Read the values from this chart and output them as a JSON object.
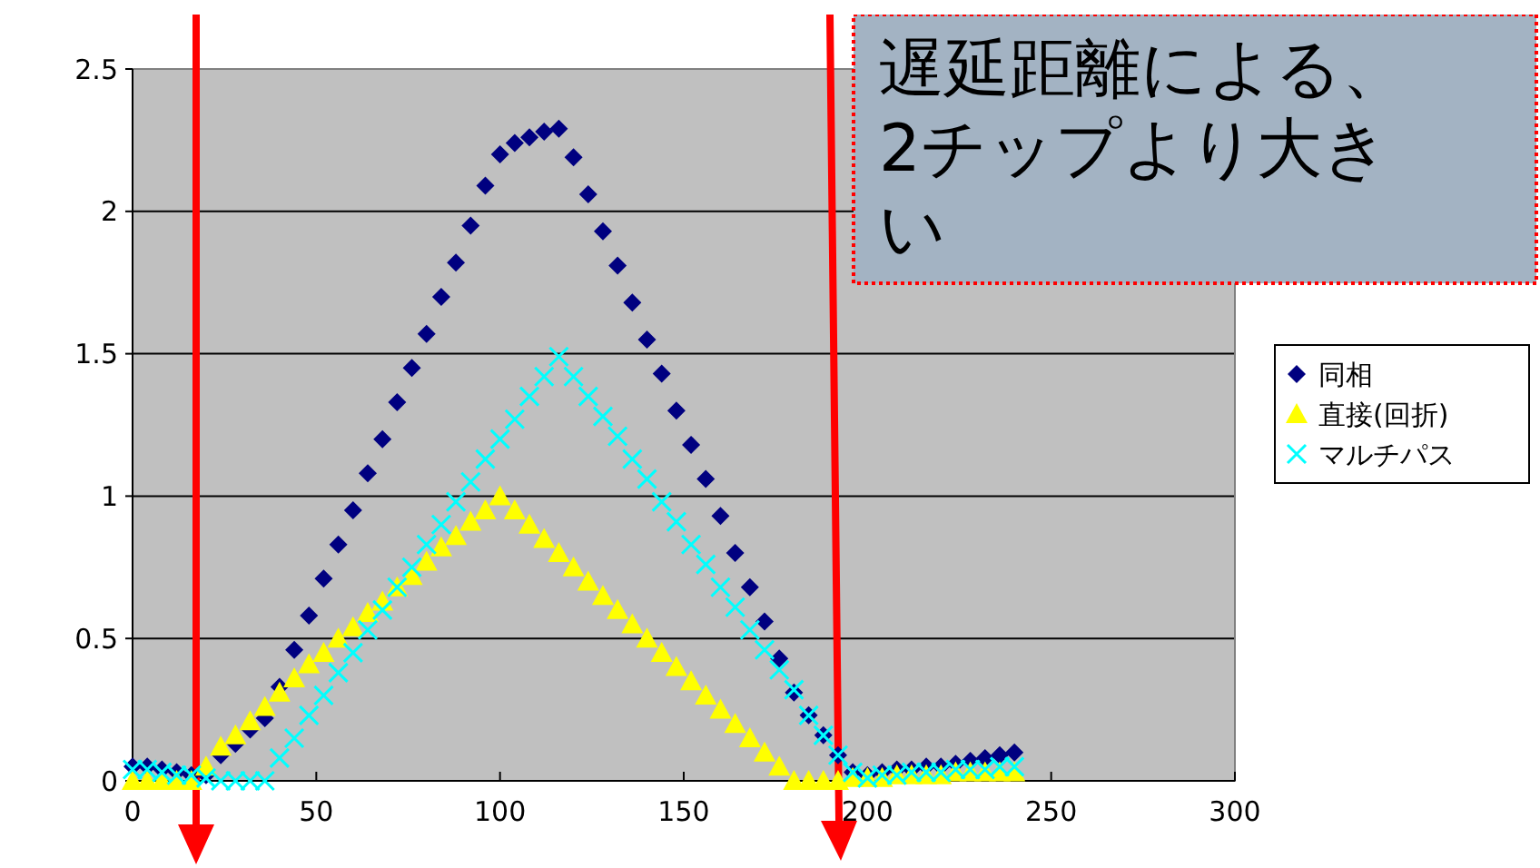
{
  "chart_data": {
    "type": "scatter",
    "x": [
      0,
      4,
      8,
      12,
      16,
      20,
      24,
      28,
      32,
      36,
      40,
      44,
      48,
      52,
      56,
      60,
      64,
      68,
      72,
      76,
      80,
      84,
      88,
      92,
      96,
      100,
      104,
      108,
      112,
      116,
      120,
      124,
      128,
      132,
      136,
      140,
      144,
      148,
      152,
      156,
      160,
      164,
      168,
      172,
      176,
      180,
      184,
      188,
      192,
      196,
      200,
      204,
      208,
      212,
      216,
      220,
      224,
      228,
      232,
      236,
      240
    ],
    "series": [
      {
        "name": "同相",
        "color": "#000080",
        "marker": "diamond",
        "values": [
          0.05,
          0.05,
          0.04,
          0.03,
          0.02,
          0.02,
          0.09,
          0.13,
          0.18,
          0.22,
          0.33,
          0.46,
          0.58,
          0.71,
          0.83,
          0.95,
          1.08,
          1.2,
          1.33,
          1.45,
          1.57,
          1.7,
          1.82,
          1.95,
          2.09,
          2.2,
          2.24,
          2.26,
          2.28,
          2.29,
          2.19,
          2.06,
          1.93,
          1.81,
          1.68,
          1.55,
          1.43,
          1.3,
          1.18,
          1.06,
          0.93,
          0.8,
          0.68,
          0.56,
          0.43,
          0.31,
          0.23,
          0.16,
          0.09,
          0.03,
          0.02,
          0.03,
          0.04,
          0.04,
          0.05,
          0.05,
          0.06,
          0.07,
          0.08,
          0.09,
          0.1
        ]
      },
      {
        "name": "直接(回折)",
        "color": "#ffff00",
        "marker": "triangle",
        "values": [
          0,
          0,
          0,
          0,
          0,
          0.05,
          0.12,
          0.16,
          0.21,
          0.26,
          0.31,
          0.36,
          0.41,
          0.45,
          0.5,
          0.54,
          0.59,
          0.63,
          0.68,
          0.72,
          0.77,
          0.82,
          0.86,
          0.91,
          0.95,
          1,
          0.95,
          0.9,
          0.85,
          0.8,
          0.75,
          0.7,
          0.65,
          0.6,
          0.55,
          0.5,
          0.45,
          0.4,
          0.35,
          0.3,
          0.25,
          0.2,
          0.15,
          0.1,
          0.05,
          0,
          0,
          0,
          0,
          0.01,
          0.01,
          0.01,
          0.02,
          0.02,
          0.02,
          0.02,
          0.03,
          0.03,
          0.03,
          0.03,
          0.03
        ]
      },
      {
        "name": "マルチパス",
        "color": "#00ffff",
        "marker": "cross",
        "values": [
          0.04,
          0.04,
          0.03,
          0.02,
          0.02,
          0.01,
          0,
          0,
          0,
          0,
          0.08,
          0.15,
          0.23,
          0.3,
          0.38,
          0.45,
          0.53,
          0.6,
          0.68,
          0.75,
          0.83,
          0.9,
          0.98,
          1.05,
          1.13,
          1.2,
          1.27,
          1.35,
          1.42,
          1.49,
          1.42,
          1.35,
          1.28,
          1.21,
          1.13,
          1.06,
          0.98,
          0.91,
          0.83,
          0.76,
          0.68,
          0.61,
          0.53,
          0.46,
          0.39,
          0.32,
          0.23,
          0.16,
          0.09,
          0.03,
          0.01,
          0.02,
          0.02,
          0.03,
          0.03,
          0.03,
          0.04,
          0.04,
          0.04,
          0.05,
          0.05
        ]
      }
    ],
    "xlim": [
      0,
      300
    ],
    "xticks": [
      0,
      50,
      100,
      150,
      200,
      250,
      300
    ],
    "ylim": [
      0,
      2.5
    ],
    "yticks": [
      0,
      0.5,
      1,
      1.5,
      2,
      2.5
    ],
    "grid": "y",
    "legend": "right",
    "annotations": [
      "遅延距離による、2チップより大きい"
    ]
  }
}
